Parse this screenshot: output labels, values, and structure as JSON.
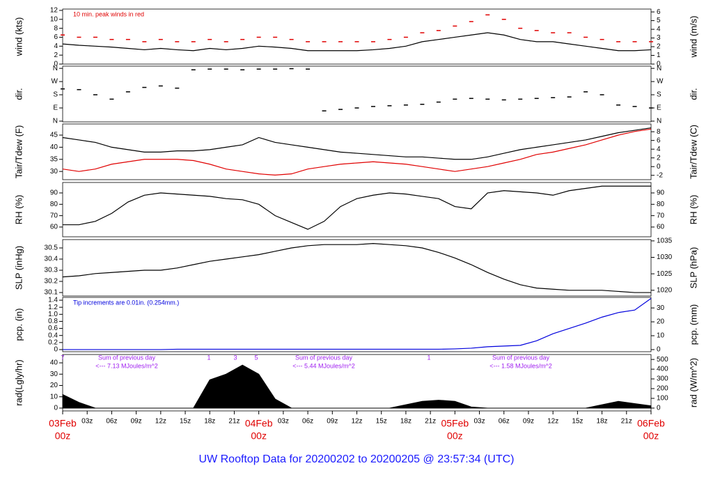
{
  "chart_data": [
    {
      "type": "line",
      "ylabel": "wind (kts)",
      "y2label": "wind (m/s)",
      "annotation": "10 min. peak winds in red",
      "xlim": [
        0,
        72
      ],
      "ylim": [
        0,
        12.3
      ],
      "yticks": [
        0,
        2,
        4,
        6,
        8,
        10,
        12
      ],
      "y2lim": [
        0,
        6.33
      ],
      "y2ticks": [
        0,
        1,
        2,
        3,
        4,
        5,
        6
      ],
      "x": [
        0,
        2,
        4,
        6,
        8,
        10,
        12,
        14,
        16,
        18,
        20,
        22,
        24,
        26,
        28,
        30,
        32,
        34,
        36,
        38,
        40,
        42,
        44,
        46,
        48,
        50,
        52,
        54,
        56,
        58,
        60,
        62,
        64,
        66,
        68,
        70,
        72
      ],
      "series": [
        {
          "color": "#000000",
          "values": [
            4.5,
            4.2,
            4,
            3.8,
            3.5,
            3.2,
            3.5,
            3.2,
            3,
            3.5,
            3.2,
            3.5,
            4,
            3.8,
            3.5,
            3,
            3,
            3,
            3,
            3.2,
            3.5,
            4,
            5,
            5.5,
            6,
            6.5,
            7,
            6.5,
            5.5,
            5,
            5,
            4.5,
            4,
            3.5,
            3,
            3,
            3.2
          ]
        },
        {
          "color": "#e00000",
          "marker": "dash",
          "values": [
            6.5,
            6,
            6,
            5.5,
            5.5,
            5,
            5.5,
            5,
            5,
            5.5,
            5,
            5.5,
            6,
            6,
            5.5,
            5,
            5,
            5,
            5,
            5,
            5.5,
            6,
            7,
            7.5,
            8.5,
            9.5,
            11,
            10,
            8,
            7.5,
            7,
            7,
            6,
            5.5,
            5,
            5,
            5
          ]
        }
      ]
    },
    {
      "type": "scatter",
      "ylabel": "dir.",
      "y2label": "dir.",
      "xlim": [
        0,
        72
      ],
      "ylim": [
        -5,
        375
      ],
      "yticks": [
        {
          "value": 0,
          "label": "N"
        },
        {
          "value": 90,
          "label": "E"
        },
        {
          "value": 180,
          "label": "S"
        },
        {
          "value": 270,
          "label": "W"
        },
        {
          "value": 360,
          "label": "N"
        }
      ],
      "y2lim": [
        -5,
        375
      ],
      "y2ticks": [
        {
          "value": 0,
          "label": "N"
        },
        {
          "value": 90,
          "label": "E"
        },
        {
          "value": 180,
          "label": "S"
        },
        {
          "value": 270,
          "label": "W"
        },
        {
          "value": 360,
          "label": "N"
        }
      ],
      "x": [
        0,
        2,
        4,
        6,
        8,
        10,
        12,
        14,
        16,
        18,
        20,
        22,
        24,
        26,
        28,
        30,
        32,
        34,
        36,
        38,
        40,
        42,
        44,
        46,
        48,
        50,
        52,
        54,
        56,
        58,
        60,
        62,
        64,
        66,
        68,
        70,
        72
      ],
      "series": [
        {
          "color": "#000000",
          "values": [
            220,
            215,
            180,
            150,
            200,
            230,
            240,
            225,
            350,
            355,
            355,
            350,
            355,
            355,
            358,
            355,
            70,
            80,
            90,
            100,
            105,
            110,
            115,
            130,
            150,
            155,
            150,
            145,
            150,
            155,
            160,
            165,
            200,
            180,
            110,
            100,
            90
          ]
        }
      ]
    },
    {
      "type": "line",
      "ylabel": "Tair/Tdew (F)",
      "y2label": "Tair/Tdew (C)",
      "xlim": [
        0,
        72
      ],
      "ylim": [
        26.6,
        49.6
      ],
      "yticks": [
        30,
        35,
        40,
        45
      ],
      "y2lim": [
        -3.0,
        9.78
      ],
      "y2ticks": [
        -2,
        0,
        2,
        4,
        6,
        8
      ],
      "x": [
        0,
        2,
        4,
        6,
        8,
        10,
        12,
        14,
        16,
        18,
        20,
        22,
        24,
        26,
        28,
        30,
        32,
        34,
        36,
        38,
        40,
        42,
        44,
        46,
        48,
        50,
        52,
        54,
        56,
        58,
        60,
        62,
        64,
        66,
        68,
        70,
        72
      ],
      "series": [
        {
          "color": "#000000",
          "values": [
            44,
            43,
            42,
            40,
            39,
            38,
            38,
            38.5,
            38.5,
            39,
            40,
            41,
            44,
            42,
            41,
            40,
            39,
            38,
            37.5,
            37,
            36.5,
            36,
            36,
            35.5,
            35,
            35,
            36,
            37.5,
            39,
            40,
            41,
            42,
            43,
            44.5,
            46,
            47,
            48
          ]
        },
        {
          "color": "#e00000",
          "values": [
            31,
            30,
            31,
            33,
            34,
            35,
            35,
            35,
            34.5,
            33,
            31,
            30,
            29,
            28.5,
            29,
            31,
            32,
            33,
            33.5,
            34,
            33.5,
            33,
            32,
            31,
            30,
            31,
            32,
            33.5,
            35,
            37,
            38,
            39.5,
            41,
            43,
            45,
            46.5,
            47.5
          ]
        }
      ]
    },
    {
      "type": "line",
      "ylabel": "RH (%)",
      "y2label": "RH (%)",
      "xlim": [
        0,
        72
      ],
      "ylim": [
        51.4,
        99.2
      ],
      "yticks": [
        60,
        70,
        80,
        90
      ],
      "y2lim": [
        51.4,
        99.2
      ],
      "y2ticks": [
        60,
        70,
        80,
        90
      ],
      "x": [
        0,
        2,
        4,
        6,
        8,
        10,
        12,
        14,
        16,
        18,
        20,
        22,
        24,
        26,
        28,
        30,
        32,
        34,
        36,
        38,
        40,
        42,
        44,
        46,
        48,
        50,
        52,
        54,
        56,
        58,
        60,
        62,
        64,
        66,
        68,
        70,
        72
      ],
      "series": [
        {
          "color": "#000000",
          "values": [
            62,
            62,
            65,
            72,
            82,
            88,
            90,
            89,
            88,
            87,
            85,
            84,
            80,
            70,
            64,
            58,
            65,
            78,
            85,
            88,
            90,
            89,
            87,
            85,
            78,
            76,
            90,
            92,
            91,
            90,
            88,
            92,
            94,
            96,
            96,
            96,
            96
          ]
        }
      ]
    },
    {
      "type": "line",
      "ylabel": "SLP (inHg)",
      "y2label": "SLP (hPa)",
      "xlim": [
        0,
        72
      ],
      "ylim": [
        30.069,
        30.575
      ],
      "yticks": [
        30.1,
        30.2,
        30.3,
        30.4,
        30.5
      ],
      "y2lim": [
        1018.26,
        1035.4
      ],
      "y2ticks": [
        1020,
        1025,
        1030,
        1035
      ],
      "x": [
        0,
        2,
        4,
        6,
        8,
        10,
        12,
        14,
        16,
        18,
        20,
        22,
        24,
        26,
        28,
        30,
        32,
        34,
        36,
        38,
        40,
        42,
        44,
        46,
        48,
        50,
        52,
        54,
        56,
        58,
        60,
        62,
        64,
        66,
        68,
        70,
        72
      ],
      "series": [
        {
          "color": "#000000",
          "values": [
            30.24,
            30.25,
            30.27,
            30.28,
            30.29,
            30.3,
            30.3,
            30.32,
            30.35,
            30.38,
            30.4,
            30.42,
            30.44,
            30.47,
            30.5,
            30.52,
            30.53,
            30.53,
            30.53,
            30.54,
            30.53,
            30.52,
            30.5,
            30.46,
            30.41,
            30.35,
            30.28,
            30.22,
            30.17,
            30.14,
            30.13,
            30.12,
            30.12,
            30.12,
            30.11,
            30.1,
            30.1
          ]
        }
      ]
    },
    {
      "type": "line",
      "ylabel": "pcp. (in)",
      "y2label": "pcp. (mm)",
      "annotation": "Tip increments are 0.01in. (0.254mm.)",
      "xlim": [
        0,
        72
      ],
      "ylim": [
        -0.06,
        1.48
      ],
      "yticks": [
        0,
        0.2,
        0.4,
        0.6,
        0.8,
        {
          "value": 1,
          "label": "1.0"
        },
        1.2,
        1.4
      ],
      "y2lim": [
        -1.52,
        37.6
      ],
      "y2ticks": [
        0,
        10,
        20,
        30
      ],
      "x": [
        0,
        2,
        4,
        6,
        8,
        10,
        12,
        14,
        16,
        18,
        20,
        22,
        24,
        26,
        28,
        30,
        32,
        34,
        36,
        38,
        40,
        42,
        44,
        46,
        48,
        50,
        52,
        54,
        56,
        58,
        60,
        62,
        64,
        66,
        68,
        70,
        72
      ],
      "series": [
        {
          "color": "#0000dd",
          "values": [
            0,
            0,
            0,
            0,
            0,
            0,
            0,
            0.01,
            0.01,
            0.01,
            0.01,
            0.01,
            0.01,
            0.01,
            0.01,
            0.01,
            0.01,
            0.01,
            0.01,
            0.01,
            0.01,
            0.01,
            0.01,
            0.01,
            0.02,
            0.04,
            0.08,
            0.1,
            0.12,
            0.25,
            0.45,
            0.6,
            0.75,
            0.92,
            1.05,
            1.12,
            1.45
          ]
        }
      ]
    },
    {
      "type": "area",
      "ylabel": "rad(Lgly/hr)",
      "y2label": "rad (W/m^2)",
      "notes": [
        "7",
        "Sum of previous day",
        "<--- 7.13 MJoules/m^2",
        "1",
        "3",
        "5",
        "Sum of previous day",
        "<--- 5.44 MJoules/m^2",
        "1",
        "Sum of previous day",
        "<--- 1.58 MJoules/m^2"
      ],
      "xlim": [
        0,
        72
      ],
      "ylim": [
        -2.5,
        47.4
      ],
      "yticks": [
        0,
        10,
        20,
        30,
        40
      ],
      "y2lim": [
        -29,
        551
      ],
      "y2ticks": [
        0,
        100,
        200,
        300,
        400,
        500
      ],
      "xticks": [
        {
          "value": 0,
          "label": "00z"
        },
        {
          "value": 3,
          "label": "03z"
        },
        {
          "value": 6,
          "label": "06z"
        },
        {
          "value": 9,
          "label": "09z"
        },
        {
          "value": 12,
          "label": "12z"
        },
        {
          "value": 15,
          "label": "15z"
        },
        {
          "value": 18,
          "label": "18z"
        },
        {
          "value": 21,
          "label": "21z"
        },
        {
          "value": 24,
          "label": "00z"
        },
        {
          "value": 27,
          "label": "03z"
        },
        {
          "value": 30,
          "label": "06z"
        },
        {
          "value": 33,
          "label": "09z"
        },
        {
          "value": 36,
          "label": "12z"
        },
        {
          "value": 39,
          "label": "15z"
        },
        {
          "value": 42,
          "label": "18z"
        },
        {
          "value": 45,
          "label": "21z"
        },
        {
          "value": 48,
          "label": "00z"
        },
        {
          "value": 51,
          "label": "03z"
        },
        {
          "value": 54,
          "label": "06z"
        },
        {
          "value": 57,
          "label": "09z"
        },
        {
          "value": 60,
          "label": "12z"
        },
        {
          "value": 63,
          "label": "15z"
        },
        {
          "value": 66,
          "label": "18z"
        },
        {
          "value": 69,
          "label": "21z"
        },
        {
          "value": 72,
          "label": "00z"
        }
      ],
      "dates": [
        {
          "value": 0,
          "label": "03Feb"
        },
        {
          "value": 24,
          "label": "04Feb"
        },
        {
          "value": 48,
          "label": "05Feb"
        },
        {
          "value": 72,
          "label": "06Feb"
        }
      ],
      "x": [
        0,
        2,
        4,
        6,
        8,
        10,
        12,
        14,
        16,
        18,
        20,
        22,
        24,
        26,
        28,
        30,
        32,
        34,
        36,
        38,
        40,
        42,
        44,
        46,
        48,
        50,
        52,
        54,
        56,
        58,
        60,
        62,
        64,
        66,
        68,
        70,
        72
      ],
      "series": [
        {
          "color": "#000000",
          "values": [
            12,
            5,
            0,
            0,
            0,
            0,
            0,
            0,
            0,
            25,
            30,
            38,
            30,
            8,
            0,
            0,
            0,
            0,
            0,
            0,
            0,
            3,
            6,
            7,
            6,
            1,
            0,
            0,
            0,
            0,
            0,
            0,
            0,
            3,
            6,
            4,
            2
          ]
        }
      ]
    }
  ],
  "title": "UW Rooftop Data for 20200202  to  20200205 @ 23:57:34  (UTC)"
}
